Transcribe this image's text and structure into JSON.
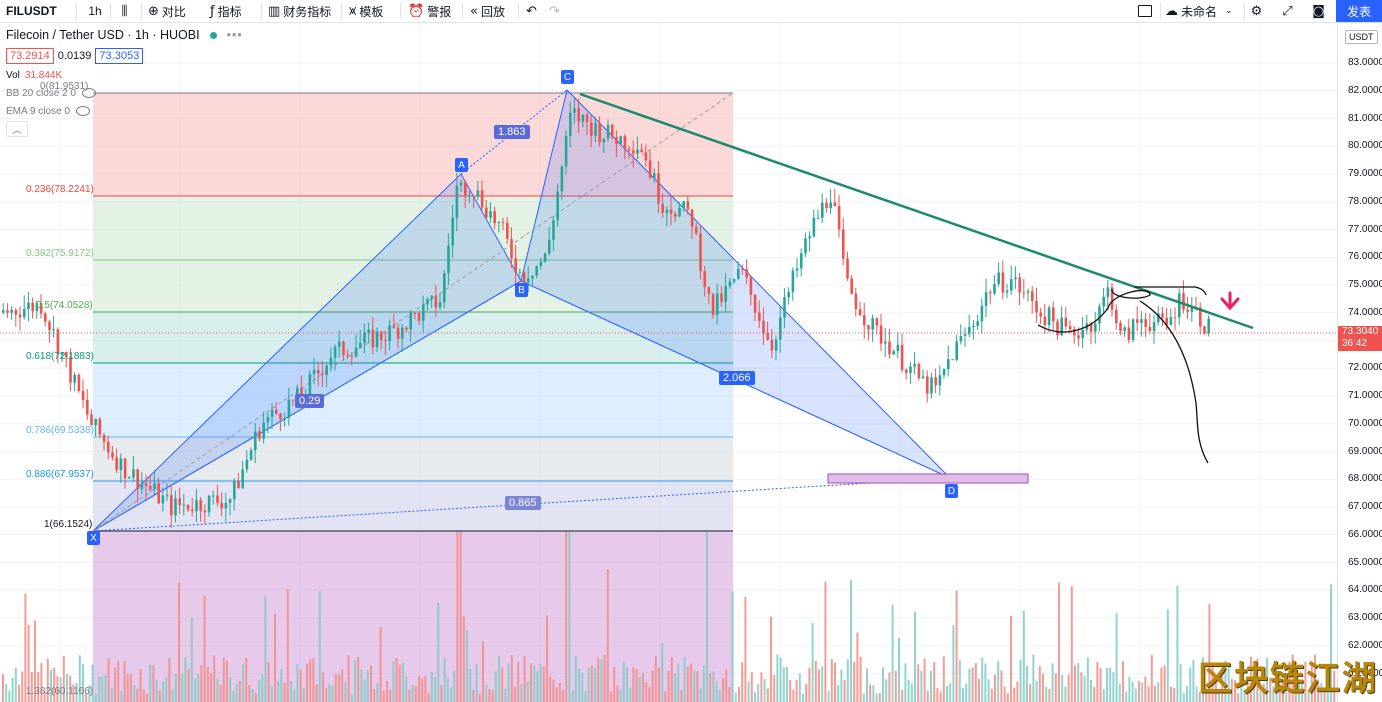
{
  "toolbar": {
    "symbol": "FILUSDT",
    "interval": "1h",
    "compare": "对比",
    "indicators": "指标",
    "financials": "财务指标",
    "templates": "模板",
    "alert": "警报",
    "replay": "回放",
    "layout_name": "未命名",
    "publish": "发表"
  },
  "legend": {
    "title": "Filecoin / Tether USD · 1h · HUOBI",
    "bid": "73.2914",
    "spread": "0.0139",
    "ask": "73.3053",
    "vol_label": "Vol",
    "vol_value": "31.844K",
    "bb": "BB 20 close 2 0",
    "ema": "EMA 9 close 0"
  },
  "price_axis": {
    "currency": "USDT",
    "labels": [
      "83.0000",
      "82.0000",
      "81.0000",
      "80.0000",
      "79.0000",
      "78.0000",
      "77.0000",
      "76.0000",
      "75.0000",
      "74.0000",
      "73.0000",
      "72.0000",
      "71.0000",
      "70.0000",
      "69.0000",
      "68.0000",
      "67.0000",
      "66.0000",
      "65.0000",
      "64.0000",
      "63.0000",
      "62.0000",
      "61.0000"
    ],
    "last_price": "73.3040",
    "countdown": "36:42"
  },
  "fib_levels": [
    {
      "label": "0(81.9531)",
      "color": "#787b86"
    },
    {
      "label": "0.236(78.2241)",
      "color": "#f44336"
    },
    {
      "label": "0.382(75.9172)",
      "color": "#81c784"
    },
    {
      "label": "0.5(74.0528)",
      "color": "#4caf50"
    },
    {
      "label": "0.618(72.1883)",
      "color": "#089981"
    },
    {
      "label": "0.786(69.5338)",
      "color": "#64b5f6"
    },
    {
      "label": "0.886(67.9537)",
      "color": "#2196f3"
    },
    {
      "label": "1(66.1524)",
      "color": "#131722"
    },
    {
      "label": "1.382(60.1166)",
      "color": "#787b86"
    }
  ],
  "pattern": {
    "points": [
      "X",
      "A",
      "B",
      "C",
      "D"
    ],
    "ratios": [
      "1.863",
      "0.29",
      "2.066",
      "0.865"
    ],
    "pattern_color": "#2962ff"
  },
  "watermark": "区块链江湖"
}
